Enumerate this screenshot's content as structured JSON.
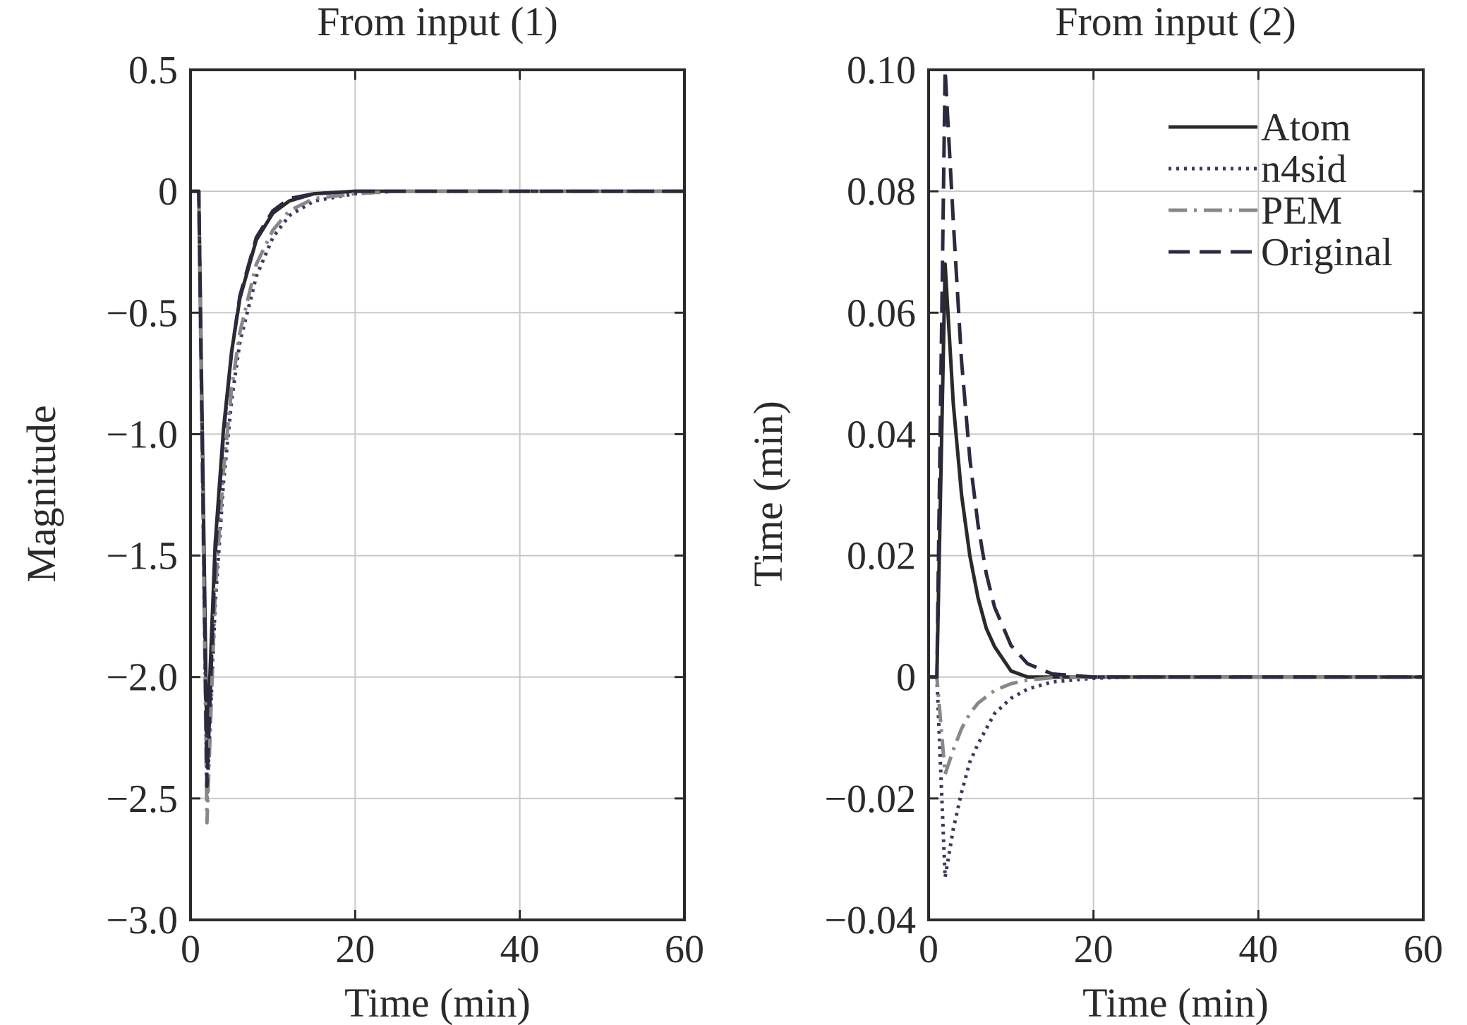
{
  "chart_data": [
    {
      "type": "line",
      "title": "From input (1)",
      "xlabel": "Time (min)",
      "ylabel": "Magnitude",
      "xlim": [
        0,
        60
      ],
      "ylim": [
        -3.0,
        0.5
      ],
      "xticks": [
        0,
        20,
        40,
        60
      ],
      "xtick_labels": [
        "0",
        "20",
        "40",
        "60"
      ],
      "yticks": [
        0.5,
        0,
        -0.5,
        -1.0,
        -1.5,
        -2.0,
        -2.5,
        -3.0
      ],
      "ytick_labels": [
        "0.5",
        "0",
        "−0.5",
        "−1.0",
        "−1.5",
        "−2.0",
        "−2.5",
        "−3.0"
      ],
      "grid": true,
      "series": [
        {
          "name": "Atom",
          "style": "solid",
          "color": "#2a2a2a",
          "x": [
            0,
            1,
            2,
            3,
            4,
            5,
            6,
            8,
            10,
            12,
            15,
            20,
            25,
            30,
            40,
            50,
            60
          ],
          "y": [
            0,
            0,
            -2.3,
            -1.45,
            -0.98,
            -0.66,
            -0.44,
            -0.2,
            -0.09,
            -0.04,
            -0.01,
            0,
            0,
            0,
            0,
            0,
            0
          ]
        },
        {
          "name": "n4sid",
          "style": "dotted",
          "color": "#3a3a5c",
          "x": [
            0,
            1,
            2,
            3,
            4,
            5,
            6,
            8,
            10,
            12,
            15,
            20,
            25,
            30,
            40,
            50,
            60
          ],
          "y": [
            0,
            0,
            -2.5,
            -1.7,
            -1.2,
            -0.86,
            -0.62,
            -0.35,
            -0.19,
            -0.1,
            -0.04,
            -0.01,
            0,
            0,
            0,
            0,
            0
          ]
        },
        {
          "name": "PEM",
          "style": "dashdot",
          "color": "#888888",
          "x": [
            0,
            1,
            2,
            3,
            4,
            5,
            6,
            8,
            10,
            12,
            15,
            20,
            25,
            30,
            40,
            50,
            60
          ],
          "y": [
            0,
            0,
            -2.6,
            -1.65,
            -1.15,
            -0.81,
            -0.58,
            -0.3,
            -0.16,
            -0.08,
            -0.03,
            -0.01,
            0,
            0,
            0,
            0,
            0
          ]
        },
        {
          "name": "Original",
          "style": "dashed",
          "color": "#2a2a40",
          "x": [
            0,
            1,
            2,
            3,
            4,
            5,
            6,
            8,
            10,
            12,
            15,
            20,
            25,
            30,
            40,
            50,
            60
          ],
          "y": [
            0,
            0,
            -2.45,
            -1.5,
            -1.0,
            -0.66,
            -0.43,
            -0.19,
            -0.08,
            -0.03,
            -0.01,
            0,
            0,
            0,
            0,
            0,
            0
          ]
        }
      ]
    },
    {
      "type": "line",
      "title": "From input (2)",
      "xlabel": "Time (min)",
      "ylabel": "Time (min)",
      "xlim": [
        0,
        60
      ],
      "ylim": [
        -0.04,
        0.1
      ],
      "xticks": [
        0,
        20,
        40,
        60
      ],
      "xtick_labels": [
        "0",
        "20",
        "40",
        "60"
      ],
      "yticks": [
        0.1,
        0.08,
        0.06,
        0.04,
        0.02,
        0,
        -0.02,
        -0.04
      ],
      "ytick_labels": [
        "0.10",
        "0.08",
        "0.06",
        "0.04",
        "0.02",
        "0",
        "−0.02",
        "−0.04"
      ],
      "grid": true,
      "legend": {
        "location": "top-right",
        "entries": [
          "Atom",
          "n4sid",
          "PEM",
          "Original"
        ]
      },
      "series": [
        {
          "name": "Atom",
          "style": "solid",
          "color": "#2a2a2a",
          "x": [
            0,
            1,
            2,
            3,
            4,
            5,
            6,
            7,
            8,
            10,
            12,
            15,
            20,
            30,
            40,
            50,
            60
          ],
          "y": [
            0,
            0,
            0.068,
            0.045,
            0.03,
            0.02,
            0.013,
            0.008,
            0.005,
            0.001,
            0,
            0,
            0,
            0,
            0,
            0,
            0
          ]
        },
        {
          "name": "n4sid",
          "style": "dotted",
          "color": "#3a3a5c",
          "x": [
            0,
            1,
            2,
            3,
            4,
            5,
            6,
            8,
            10,
            12,
            15,
            20,
            25,
            30,
            40,
            50,
            60
          ],
          "y": [
            0,
            0,
            -0.033,
            -0.025,
            -0.019,
            -0.014,
            -0.011,
            -0.006,
            -0.0035,
            -0.002,
            -0.0008,
            -0.0002,
            0,
            0,
            0,
            0,
            0
          ]
        },
        {
          "name": "PEM",
          "style": "dashdot",
          "color": "#888888",
          "x": [
            0,
            1,
            2,
            3,
            4,
            5,
            6,
            8,
            10,
            12,
            15,
            20,
            25,
            30,
            40,
            50,
            60
          ],
          "y": [
            0,
            0,
            -0.016,
            -0.012,
            -0.0085,
            -0.006,
            -0.0043,
            -0.0022,
            -0.0011,
            -0.0005,
            -0.0001,
            0,
            0,
            0,
            0,
            0,
            0
          ]
        },
        {
          "name": "Original",
          "style": "dashed",
          "color": "#2a2a40",
          "x": [
            0,
            1,
            2,
            3,
            4,
            5,
            6,
            7,
            8,
            10,
            12,
            15,
            20,
            30,
            40,
            50,
            60
          ],
          "y": [
            0,
            0,
            0.1,
            0.075,
            0.052,
            0.036,
            0.025,
            0.017,
            0.0115,
            0.0052,
            0.0022,
            0.0005,
            0,
            0,
            0,
            0,
            0
          ]
        }
      ]
    }
  ]
}
